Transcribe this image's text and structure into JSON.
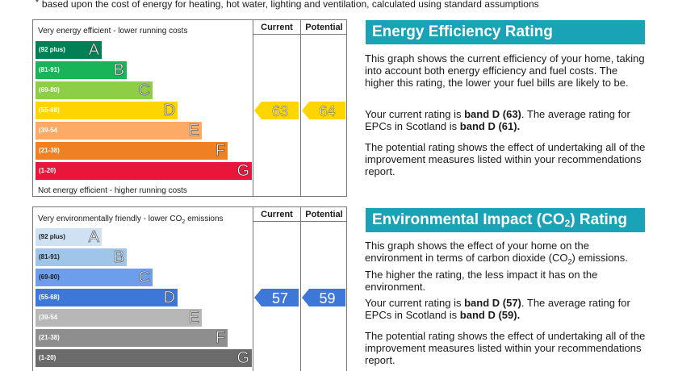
{
  "footnote": {
    "star": "*",
    "text": "based upon the cost of energy for heating, hot water, lighting and ventilation, calculated using standard assumptions"
  },
  "energy": {
    "heading": "Energy Efficiency Rating",
    "col_current": "Current",
    "col_potential": "Potential",
    "top_caption": "Very energy efficient - lower running costs",
    "bottom_caption": "Not energy efficient - higher running costs",
    "bands": [
      {
        "range": "(92 plus)",
        "letter": "A",
        "color": "#008054"
      },
      {
        "range": "(81-91)",
        "letter": "B",
        "color": "#19b459"
      },
      {
        "range": "(69-80)",
        "letter": "C",
        "color": "#8dce46"
      },
      {
        "range": "(55-68)",
        "letter": "D",
        "color": "#ffd500"
      },
      {
        "range": "(39-54",
        "letter": "E",
        "color": "#fcaa65"
      },
      {
        "range": "(21-38)",
        "letter": "F",
        "color": "#ef8023"
      },
      {
        "range": "(1-20)",
        "letter": "G",
        "color": "#e9153b"
      }
    ],
    "current": {
      "value": "63",
      "band": "D",
      "color": "#ffd500"
    },
    "potential": {
      "value": "64",
      "band": "D",
      "color": "#ffd500"
    },
    "para1": "This graph shows the current efficiency of your home, taking into account both energy efficiency and fuel costs. The higher this rating, the lower your fuel bills are likely to be.",
    "para2_pre": "Your current rating is ",
    "para2_b1": "band D (63)",
    "para2_mid": ". The average rating for EPCs in Scotland is ",
    "para2_b2": "band D (61).",
    "para3": "The potential rating shows the effect of undertaking all of the improvement measures listed within your recommendations report."
  },
  "environment": {
    "heading_main": "Environmental Impact (CO",
    "heading_sub": "2",
    "heading_end": ") Rating",
    "col_current": "Current",
    "col_potential": "Potential",
    "top_caption_main": "Very environmentally friendly - lower CO",
    "top_caption_sub": "2",
    "top_caption_end": " emissions",
    "bands": [
      {
        "range": "(92 plus)",
        "letter": "A",
        "color": "#cfe2f3"
      },
      {
        "range": "(81-91)",
        "letter": "B",
        "color": "#9fc5e8"
      },
      {
        "range": "(69-80)",
        "letter": "C",
        "color": "#6d9eeb"
      },
      {
        "range": "(55-68)",
        "letter": "D",
        "color": "#3d78d8"
      },
      {
        "range": "(39-54",
        "letter": "E",
        "color": "#b7b7b7"
      },
      {
        "range": "(21-38)",
        "letter": "F",
        "color": "#8e8e8e"
      },
      {
        "range": "(1-20)",
        "letter": "G",
        "color": "#6b6b6b"
      }
    ],
    "current": {
      "value": "57",
      "band": "D",
      "color": "#3d78d8"
    },
    "potential": {
      "value": "59",
      "band": "D",
      "color": "#3d78d8"
    },
    "para1_a": "This graph shows the effect of your home on the environment in terms of carbon dioxide (CO",
    "para1_sub": "2",
    "para1_b": ") emissions. The higher the rating, the less impact it has on the environment.",
    "para2_pre": "Your current rating is ",
    "para2_b1": "band D (57)",
    "para2_mid": ". The average rating for EPCs in Scotland is ",
    "para2_b2": "band D (59).",
    "para3": "The potential rating shows the effect of undertaking all of the improvement measures listed within your recommendations report."
  }
}
